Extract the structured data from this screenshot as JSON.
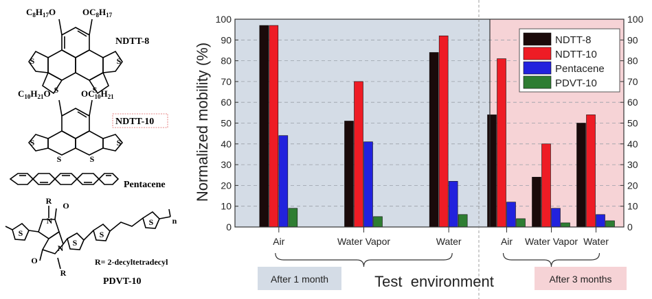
{
  "molecules": {
    "ndtt8": {
      "name": "NDTT-8",
      "sub_left": "C",
      "sub_left_n1": "8",
      "sub_left_h": "H",
      "sub_left_n2": "17",
      "sub_left_o": "O",
      "sub_right_o": "O",
      "sub_right": "C",
      "sub_right_n1": "8",
      "sub_right_h": "H",
      "sub_right_n2": "17"
    },
    "ndtt10": {
      "name": "NDTT-10",
      "sub_left": "C",
      "sub_left_n1": "10",
      "sub_left_h": "H",
      "sub_left_n2": "21",
      "sub_left_o": "O",
      "sub_right_o": "O",
      "sub_right": "C",
      "sub_right_n1": "10",
      "sub_right_h": "H",
      "sub_right_n2": "21"
    },
    "pentacene": {
      "name": "Pentacene"
    },
    "pdvt10": {
      "name": "PDVT-10",
      "r_note": "R= 2-decyltetradecyl",
      "r_label": "R",
      "n_label": "n",
      "atom_s": "S",
      "atom_n": "N",
      "atom_o": "O"
    }
  },
  "chart_data": {
    "type": "bar",
    "ylabel": "Normalized mobility (%)",
    "xlabel": "Test  environment",
    "ylim": [
      0,
      100
    ],
    "yticks": [
      0,
      10,
      20,
      30,
      40,
      50,
      60,
      70,
      80,
      90,
      100
    ],
    "groups": [
      {
        "label": "After 1 month",
        "categories": [
          "Air",
          "Water Vapor",
          "Water"
        ]
      },
      {
        "label": "After 3 months",
        "categories": [
          "Air",
          "Water Vapor",
          "Water"
        ]
      }
    ],
    "series": [
      {
        "name": "NDTT-8",
        "color": "#1a0a0a",
        "values": [
          97,
          51,
          84,
          54,
          24,
          50
        ]
      },
      {
        "name": "NDTT-10",
        "color": "#ee1c25",
        "values": [
          97,
          70,
          92,
          81,
          40,
          54
        ]
      },
      {
        "name": "Pentacene",
        "color": "#2222dd",
        "values": [
          44,
          41,
          22,
          12,
          9,
          6
        ]
      },
      {
        "name": "PDVT-10",
        "color": "#2e7d32",
        "values": [
          9,
          5,
          6,
          4,
          2,
          3
        ]
      }
    ],
    "legend_position": "top-right",
    "panel_colors": [
      "#d4dce6",
      "#f6d3d6"
    ]
  }
}
